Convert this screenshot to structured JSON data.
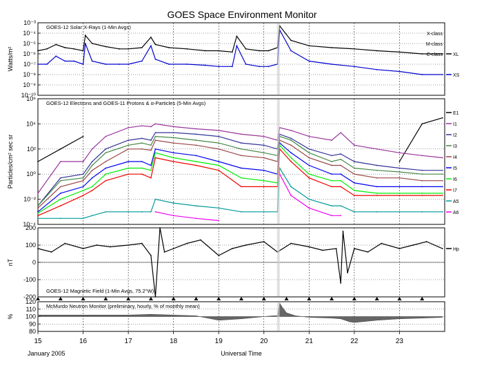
{
  "title": "GOES Space Environment Monitor",
  "footer_left": "January 2005",
  "footer_center": "Universal Time",
  "x_ticks": [
    "15",
    "16",
    "17",
    "18",
    "19",
    "20",
    "21",
    "22",
    "23"
  ],
  "chart_data": [
    {
      "type": "line",
      "title": "GOES-12 Solar X-Rays (1-Min Avgs)",
      "ylabel": "Watts/m²",
      "log_scale": true,
      "ylim": [
        1e-10,
        0.001
      ],
      "y_ticks": [
        "10⁻³",
        "10⁻⁴",
        "10⁻⁵",
        "10⁻⁶",
        "10⁻⁷",
        "10⁻⁸",
        "10⁻⁹",
        "10⁻¹⁰"
      ],
      "flare_class_labels": [
        "X-class",
        "M-class",
        "C-class"
      ],
      "x": [
        15,
        15.2,
        15.4,
        15.6,
        15.8,
        16.0,
        16.05,
        16.2,
        16.5,
        16.8,
        17.0,
        17.3,
        17.5,
        17.6,
        17.9,
        18.3,
        18.7,
        19.0,
        19.3,
        19.4,
        19.6,
        19.9,
        20.1,
        20.3,
        20.35,
        20.6,
        21.0,
        21.5,
        22.0,
        22.5,
        23.0,
        23.5,
        23.95
      ],
      "series": [
        {
          "name": "XL",
          "color": "#000000",
          "values": [
            2e-06,
            3e-06,
            8e-06,
            4e-06,
            3e-06,
            2e-06,
            6e-05,
            1e-05,
            5e-06,
            3e-06,
            3e-06,
            4e-06,
            4e-05,
            8e-06,
            4e-06,
            3e-06,
            2e-06,
            2e-06,
            1.5e-06,
            5e-05,
            3e-06,
            2e-06,
            2e-06,
            4e-06,
            0.0005,
            2e-05,
            6e-06,
            4e-06,
            3e-06,
            2e-06,
            1.5e-06,
            1e-06,
            1e-06
          ]
        },
        {
          "name": "XS",
          "color": "#0000cc",
          "values": [
            1e-07,
            1e-07,
            6e-07,
            2e-07,
            2e-07,
            1e-07,
            1e-05,
            2e-07,
            1e-07,
            1e-07,
            1e-07,
            2e-07,
            6e-06,
            3e-07,
            1e-07,
            1e-07,
            8e-08,
            6e-08,
            6e-08,
            6e-06,
            1e-07,
            6e-08,
            6e-08,
            1e-07,
            0.0002,
            2e-06,
            2e-07,
            1e-07,
            6e-08,
            3e-08,
            2e-08,
            1e-08,
            1e-08
          ]
        }
      ]
    },
    {
      "type": "line",
      "title": "GOES-12 Electrons and GOES-11 Protons & α-Particles (5-Min Avgs)",
      "ylabel": "Particles/cm² sec sr",
      "log_scale": true,
      "ylim": [
        0.0001,
        1000000.0
      ],
      "y_ticks": [
        "10⁶",
        "10⁴",
        "10²",
        "10⁰",
        "10⁻²",
        "10⁻⁴"
      ],
      "x": [
        15,
        15.5,
        16,
        16.2,
        16.5,
        17,
        17.3,
        17.5,
        17.6,
        18,
        18.5,
        19,
        19.5,
        20,
        20.3,
        20.35,
        20.6,
        21,
        21.5,
        21.7,
        22,
        22.5,
        23,
        23.5,
        23.95
      ],
      "series": [
        {
          "name": "E1",
          "color": "#000000",
          "values": [
            10,
            100,
            1000,
            null,
            null,
            null,
            null,
            null,
            null,
            null,
            null,
            null,
            null,
            null,
            null,
            null,
            null,
            null,
            null,
            null,
            null,
            null,
            10,
            10000,
            30000
          ]
        },
        {
          "name": "I1",
          "color": "#993399",
          "values": [
            0.03,
            10,
            10,
            100,
            1000,
            5000,
            7000,
            6000,
            10000,
            6000,
            4000,
            3000,
            1500,
            1000,
            500,
            5000,
            3000,
            1000,
            500,
            2000,
            200,
            100,
            50,
            30,
            20
          ]
        },
        {
          "name": "I2",
          "color": "#333399",
          "values": [
            0.003,
            0.5,
            1,
            10,
            100,
            500,
            700,
            500,
            2000,
            2000,
            1500,
            1000,
            300,
            200,
            100,
            1500,
            700,
            100,
            30,
            40,
            10,
            5,
            3,
            2,
            2
          ]
        },
        {
          "name": "I3",
          "color": "#448844",
          "values": [
            0.003,
            0.3,
            0.5,
            5,
            50,
            200,
            300,
            200,
            1000,
            800,
            500,
            300,
            100,
            50,
            30,
            1000,
            500,
            50,
            10,
            15,
            3,
            2,
            1.5,
            1,
            1
          ]
        },
        {
          "name": "I4",
          "color": "#994444",
          "values": [
            0.002,
            0.1,
            0.3,
            2,
            10,
            100,
            100,
            80,
            500,
            300,
            200,
            100,
            30,
            20,
            10,
            500,
            200,
            20,
            5,
            5,
            1,
            0.5,
            0.5,
            0.3,
            0.3
          ]
        },
        {
          "name": "I5",
          "color": "#0000ee",
          "values": [
            0.001,
            0.03,
            0.1,
            0.5,
            3,
            10,
            10,
            5,
            100,
            50,
            30,
            10,
            3,
            2,
            1,
            300,
            50,
            5,
            1,
            1,
            0.2,
            0.1,
            0.1,
            0.1,
            0.1
          ]
        },
        {
          "name": "I6",
          "color": "#00ee00",
          "values": [
            0.0008,
            0.01,
            0.05,
            0.1,
            1,
            3,
            3,
            2,
            50,
            20,
            10,
            5,
            0.5,
            0.3,
            0.2,
            200,
            20,
            1,
            0.3,
            0.3,
            0.05,
            0.03,
            0.03,
            0.03,
            0.03
          ]
        },
        {
          "name": "I7",
          "color": "#ee0000",
          "values": [
            0.0005,
            0.003,
            0.02,
            0.05,
            0.3,
            1,
            1,
            0.5,
            20,
            10,
            5,
            2,
            0.1,
            0.1,
            0.1,
            100,
            10,
            0.5,
            0.1,
            0.1,
            0.02,
            0.02,
            0.02,
            0.02,
            0.02
          ]
        },
        {
          "name": "A5",
          "color": "#009999",
          "values": [
            0.0003,
            0.0003,
            0.0003,
            0.0005,
            0.001,
            0.001,
            0.001,
            0.001,
            0.01,
            0.005,
            0.003,
            0.002,
            0.001,
            0.001,
            0.001,
            3,
            0.1,
            0.01,
            0.003,
            0.003,
            0.001,
            0.001,
            0.001,
            0.001,
            0.001
          ]
        },
        {
          "name": "A6",
          "color": "#ee00ee",
          "values": [
            null,
            null,
            null,
            null,
            null,
            null,
            null,
            null,
            0.001,
            0.0005,
            0.0003,
            0.0002,
            null,
            null,
            null,
            1,
            0.02,
            0.002,
            0.0005,
            0.0005,
            null,
            null,
            null,
            null,
            null
          ]
        }
      ]
    },
    {
      "type": "line",
      "title": "GOES-12 Magnetic Field (1-Min Avgs, 75.2°W)",
      "ylabel": "nT",
      "ylim": [
        -200,
        200
      ],
      "y_ticks": [
        "200",
        "100",
        "0",
        "-100",
        "-200"
      ],
      "x": [
        15,
        15.3,
        15.6,
        16,
        16.3,
        16.6,
        17,
        17.3,
        17.5,
        17.6,
        17.7,
        17.8,
        18,
        18.3,
        18.6,
        19,
        19.3,
        19.6,
        20,
        20.3,
        20.6,
        21,
        21.3,
        21.6,
        21.7,
        21.75,
        21.85,
        22,
        22.3,
        22.6,
        23,
        23.3,
        23.6,
        23.95
      ],
      "series": [
        {
          "name": "Hp",
          "color": "#000000",
          "values": [
            80,
            60,
            110,
            80,
            100,
            90,
            100,
            110,
            40,
            -200,
            200,
            60,
            80,
            110,
            130,
            40,
            80,
            100,
            120,
            60,
            110,
            90,
            70,
            80,
            -120,
            180,
            -60,
            80,
            60,
            110,
            80,
            100,
            120,
            80
          ]
        }
      ]
    },
    {
      "type": "area",
      "title": "McMurdo Neutron Monitor (preliminary, hourly, % of monthly mean)",
      "ylabel": "%",
      "ylim": [
        80,
        120
      ],
      "y_ticks": [
        "120",
        "110",
        "100",
        "90",
        "80"
      ],
      "x": [
        15,
        15.5,
        16,
        16.5,
        17,
        17.5,
        18,
        18.5,
        19,
        19.5,
        20,
        20.2,
        20.3,
        20.35,
        20.4,
        20.5,
        20.7,
        21,
        21.5,
        21.7,
        21.9,
        22,
        22.5,
        23,
        23.5,
        23.95
      ],
      "values": [
        102,
        102,
        102,
        102,
        102,
        103,
        102,
        101,
        95,
        97,
        100,
        101,
        101,
        118,
        113,
        105,
        101,
        99,
        98,
        97,
        93,
        92,
        95,
        97,
        98,
        99
      ]
    }
  ],
  "indicators": {
    "days": [
      15,
      15.5,
      16,
      16.5,
      17,
      17.5,
      18,
      18.5,
      19,
      19.5,
      20,
      20.5,
      21,
      21.5,
      22,
      22.5,
      23,
      23.5
    ]
  }
}
